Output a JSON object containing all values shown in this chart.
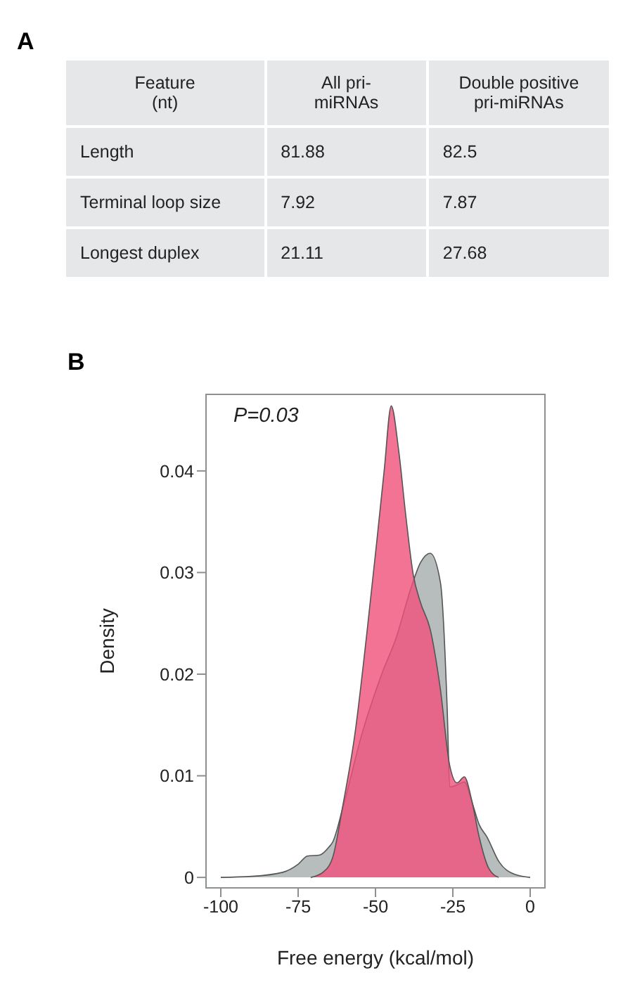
{
  "chart_data": [
    {
      "type": "other",
      "title": "A",
      "categories": [
        "Feature (nt)",
        "All pri-miRNAs",
        "Double positive pri-miRNAs"
      ],
      "y_categories": [
        "Length",
        "Terminal loop size",
        "Longest duplex"
      ],
      "cell_labels": [
        [
          "81.88",
          "82.5"
        ],
        [
          "7.92",
          "7.87"
        ],
        [
          "21.11",
          "27.68"
        ]
      ]
    },
    {
      "type": "area",
      "title": "B",
      "xlabel": "Free energy (kcal/mol)",
      "ylabel": "Density",
      "annotations": [
        "P=0.03"
      ],
      "xlim": [
        -105,
        5
      ],
      "xticks": [
        -100,
        -75,
        -50,
        -25,
        0
      ],
      "ylim": [
        -0.0011,
        0.0476
      ],
      "yticks": [
        0,
        0.01,
        0.02,
        0.03,
        0.04
      ],
      "series": [
        {
          "color": "#a5adac",
          "x": [
            -100,
            -90,
            -80,
            -75,
            -72,
            -68,
            -65,
            -63.8,
            -60.6,
            -54.3,
            -48,
            -43.3,
            -38.6,
            -35.4,
            -32.3,
            -29,
            -26.8,
            -26,
            -23.6,
            -21.3,
            -18.9,
            -16.5,
            -14,
            -10,
            -5,
            0
          ],
          "values": [
            0,
            0.0001,
            0.0005,
            0.0013,
            0.0021,
            0.0022,
            0.003,
            0.0035,
            0.0068,
            0.0142,
            0.02,
            0.0236,
            0.0284,
            0.031,
            0.0319,
            0.029,
            0.0164,
            0.0089,
            0.0091,
            0.0094,
            0.0075,
            0.0052,
            0.004,
            0.0015,
            0.0003,
            0
          ]
        },
        {
          "color": "#f0507a",
          "x": [
            -70.9,
            -67,
            -63.8,
            -60.6,
            -56.7,
            -52.8,
            -49.6,
            -47.2,
            -44.9,
            -42.5,
            -40.2,
            -37.8,
            -35.4,
            -32.3,
            -29.1,
            -26,
            -23.6,
            -21.3,
            -18.9,
            -16.5,
            -13.4,
            -10.2
          ],
          "values": [
            0,
            0.0005,
            0.002,
            0.007,
            0.014,
            0.024,
            0.033,
            0.04,
            0.0464,
            0.042,
            0.0356,
            0.0298,
            0.027,
            0.0244,
            0.0187,
            0.011,
            0.0093,
            0.0099,
            0.0076,
            0.004,
            0.0009,
            0
          ]
        }
      ]
    }
  ]
}
